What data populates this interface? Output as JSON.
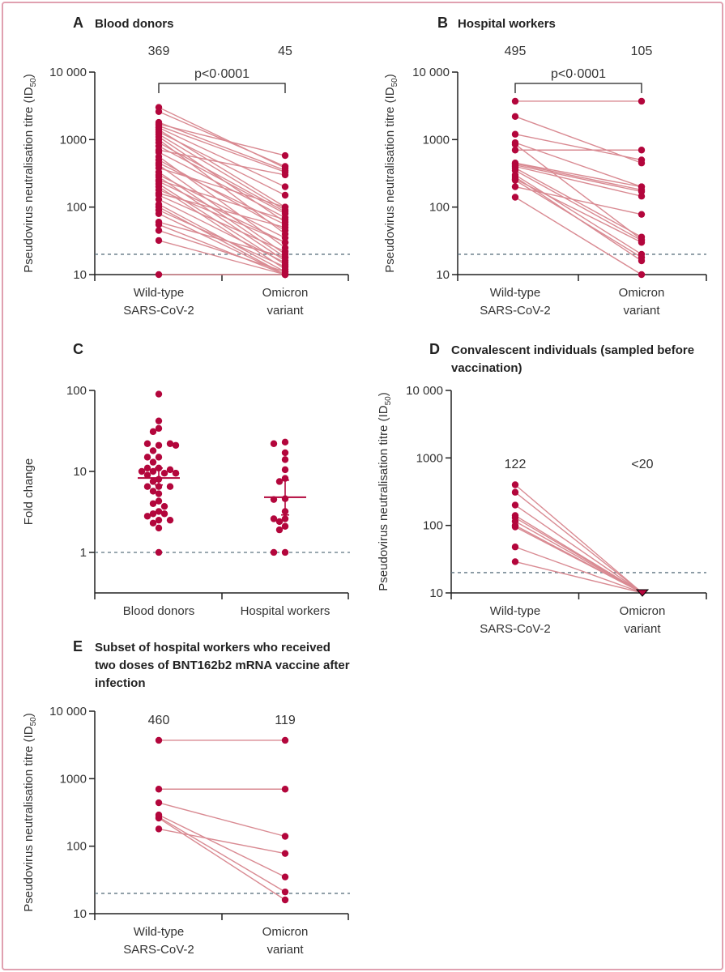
{
  "colors": {
    "dot": "#b3063c",
    "line": "#d98a92",
    "threshold": "#5e7380",
    "axis": "#222222"
  },
  "chart_data": [
    {
      "panel": "A",
      "title_lines": [
        "Blood donors"
      ],
      "type": "line",
      "ylabel": {
        "main": "Pseudovirus  neutralisation titre (ID",
        "sub": "50",
        "end": ")"
      },
      "yscale": "log",
      "ylim": [
        10,
        10000
      ],
      "yticks": [
        10,
        100,
        1000,
        10000
      ],
      "ytick_labels": [
        "10",
        "100",
        "1000",
        "10 000"
      ],
      "categories": [
        [
          "Wild-type",
          "SARS-CoV-2"
        ],
        [
          "Omicron",
          "variant"
        ]
      ],
      "geometric_means": [
        "369",
        "45"
      ],
      "pvalue": "p<0·0001",
      "threshold": 20,
      "pairs": [
        [
          3000,
          380
        ],
        [
          2600,
          400
        ],
        [
          1800,
          350
        ],
        [
          1700,
          580
        ],
        [
          1600,
          330
        ],
        [
          1500,
          200
        ],
        [
          1400,
          100
        ],
        [
          1300,
          150
        ],
        [
          1200,
          90
        ],
        [
          1100,
          60
        ],
        [
          1000,
          40
        ],
        [
          800,
          80
        ],
        [
          650,
          70
        ],
        [
          560,
          25
        ],
        [
          500,
          45
        ],
        [
          450,
          55
        ],
        [
          420,
          20
        ],
        [
          380,
          100
        ],
        [
          330,
          18
        ],
        [
          300,
          35
        ],
        [
          280,
          16
        ],
        [
          250,
          65
        ],
        [
          220,
          14
        ],
        [
          200,
          12
        ],
        [
          180,
          30
        ],
        [
          160,
          50
        ],
        [
          150,
          22
        ],
        [
          130,
          15
        ],
        [
          110,
          11
        ],
        [
          100,
          10
        ],
        [
          90,
          13
        ],
        [
          80,
          10
        ],
        [
          60,
          18
        ],
        [
          55,
          10
        ],
        [
          45,
          11
        ],
        [
          32,
          10
        ],
        [
          10,
          10
        ],
        [
          700,
          300
        ],
        [
          900,
          85
        ],
        [
          240,
          30
        ]
      ]
    },
    {
      "panel": "B",
      "title_lines": [
        "Hospital workers"
      ],
      "type": "line",
      "ylabel": {
        "main": "Pseudovirus  neutralisation titre (ID",
        "sub": "50",
        "end": ")"
      },
      "yscale": "log",
      "ylim": [
        10,
        10000
      ],
      "yticks": [
        10,
        100,
        1000,
        10000
      ],
      "ytick_labels": [
        "10",
        "100",
        "1000",
        "10 000"
      ],
      "categories": [
        [
          "Wild-type",
          "SARS-CoV-2"
        ],
        [
          "Omicron",
          "variant"
        ]
      ],
      "geometric_means": [
        "495",
        "105"
      ],
      "pvalue": "p<0·0001",
      "threshold": 20,
      "pairs": [
        [
          3700,
          3700
        ],
        [
          2200,
          450
        ],
        [
          1200,
          500
        ],
        [
          900,
          200
        ],
        [
          850,
          33
        ],
        [
          700,
          700
        ],
        [
          450,
          200
        ],
        [
          440,
          180
        ],
        [
          420,
          170
        ],
        [
          400,
          145
        ],
        [
          380,
          36
        ],
        [
          350,
          32
        ],
        [
          300,
          20
        ],
        [
          280,
          16
        ],
        [
          260,
          30
        ],
        [
          250,
          18
        ],
        [
          200,
          78
        ],
        [
          140,
          10
        ]
      ]
    },
    {
      "panel": "C",
      "title_lines": [],
      "type": "scatter",
      "ylabel": {
        "main": "Fold change",
        "sub": "",
        "end": ""
      },
      "yscale": "log",
      "ylim": [
        0.316,
        100
      ],
      "yticks": [
        1,
        10,
        100
      ],
      "ytick_labels": [
        "1",
        "10",
        "100"
      ],
      "categories": [
        [
          "Blood donors"
        ],
        [
          "Hospital workers"
        ]
      ],
      "threshold": 1,
      "groups": [
        {
          "values": [
            90,
            42,
            34,
            31,
            21,
            22,
            22,
            21,
            18,
            15,
            15,
            13,
            11,
            11,
            10.5,
            10,
            10,
            9.5,
            9.5,
            9.5,
            9,
            8,
            7.5,
            6.5,
            6.5,
            6.5,
            5.7,
            5.3,
            4.3,
            4,
            3.7,
            3.2,
            3,
            3,
            2.8,
            2.5,
            2.5,
            2.3,
            2,
            1
          ],
          "mean": 8.3,
          "error": [
            6.8,
            11
          ]
        },
        {
          "values": [
            23,
            22,
            17,
            14,
            10.5,
            8.2,
            7.5,
            4.6,
            4.5,
            3.2,
            2.6,
            2.6,
            2.4,
            2.1,
            1.9,
            1,
            1
          ],
          "mean": 4.8,
          "error": [
            2.9,
            7.8
          ]
        }
      ]
    },
    {
      "panel": "D",
      "title_lines": [
        "Convalescent individuals (sampled before",
        "vaccination)"
      ],
      "type": "line",
      "ylabel": {
        "main": "Pseudovirus  neutralisation titre (ID",
        "sub": "50",
        "end": ")"
      },
      "yscale": "log",
      "ylim": [
        10,
        10000
      ],
      "yticks": [
        10,
        100,
        1000,
        10000
      ],
      "ytick_labels": [
        "10",
        "100",
        "1000",
        "10 000"
      ],
      "categories": [
        [
          "Wild-type",
          "SARS-CoV-2"
        ],
        [
          "Omicron",
          "variant"
        ]
      ],
      "geometric_means": [
        "122",
        "<20"
      ],
      "threshold": 20,
      "omicron_marker": "triangle",
      "pairs": [
        [
          400,
          10
        ],
        [
          310,
          10
        ],
        [
          200,
          10
        ],
        [
          140,
          10
        ],
        [
          130,
          10
        ],
        [
          115,
          10
        ],
        [
          100,
          10
        ],
        [
          95,
          10
        ],
        [
          48,
          10
        ],
        [
          29,
          10
        ]
      ]
    },
    {
      "panel": "E",
      "title_lines": [
        "Subset of hospital workers who received",
        "two doses of BNT162b2 mRNA vaccine after",
        "infection"
      ],
      "type": "line",
      "ylabel": {
        "main": "Pseudovirus neutralisation titre (ID",
        "sub": "50",
        "end": ")"
      },
      "yscale": "log",
      "ylim": [
        10,
        10000
      ],
      "yticks": [
        10,
        100,
        1000,
        10000
      ],
      "ytick_labels": [
        "10",
        "100",
        "1000",
        "10 000"
      ],
      "categories": [
        [
          "Wild-type",
          "SARS-CoV-2"
        ],
        [
          "Omicron",
          "variant"
        ]
      ],
      "geometric_means": [
        "460",
        "119"
      ],
      "threshold": 20,
      "pairs": [
        [
          3700,
          3700
        ],
        [
          700,
          700
        ],
        [
          440,
          140
        ],
        [
          180,
          78
        ],
        [
          290,
          35
        ],
        [
          270,
          21
        ],
        [
          260,
          16
        ]
      ]
    }
  ]
}
